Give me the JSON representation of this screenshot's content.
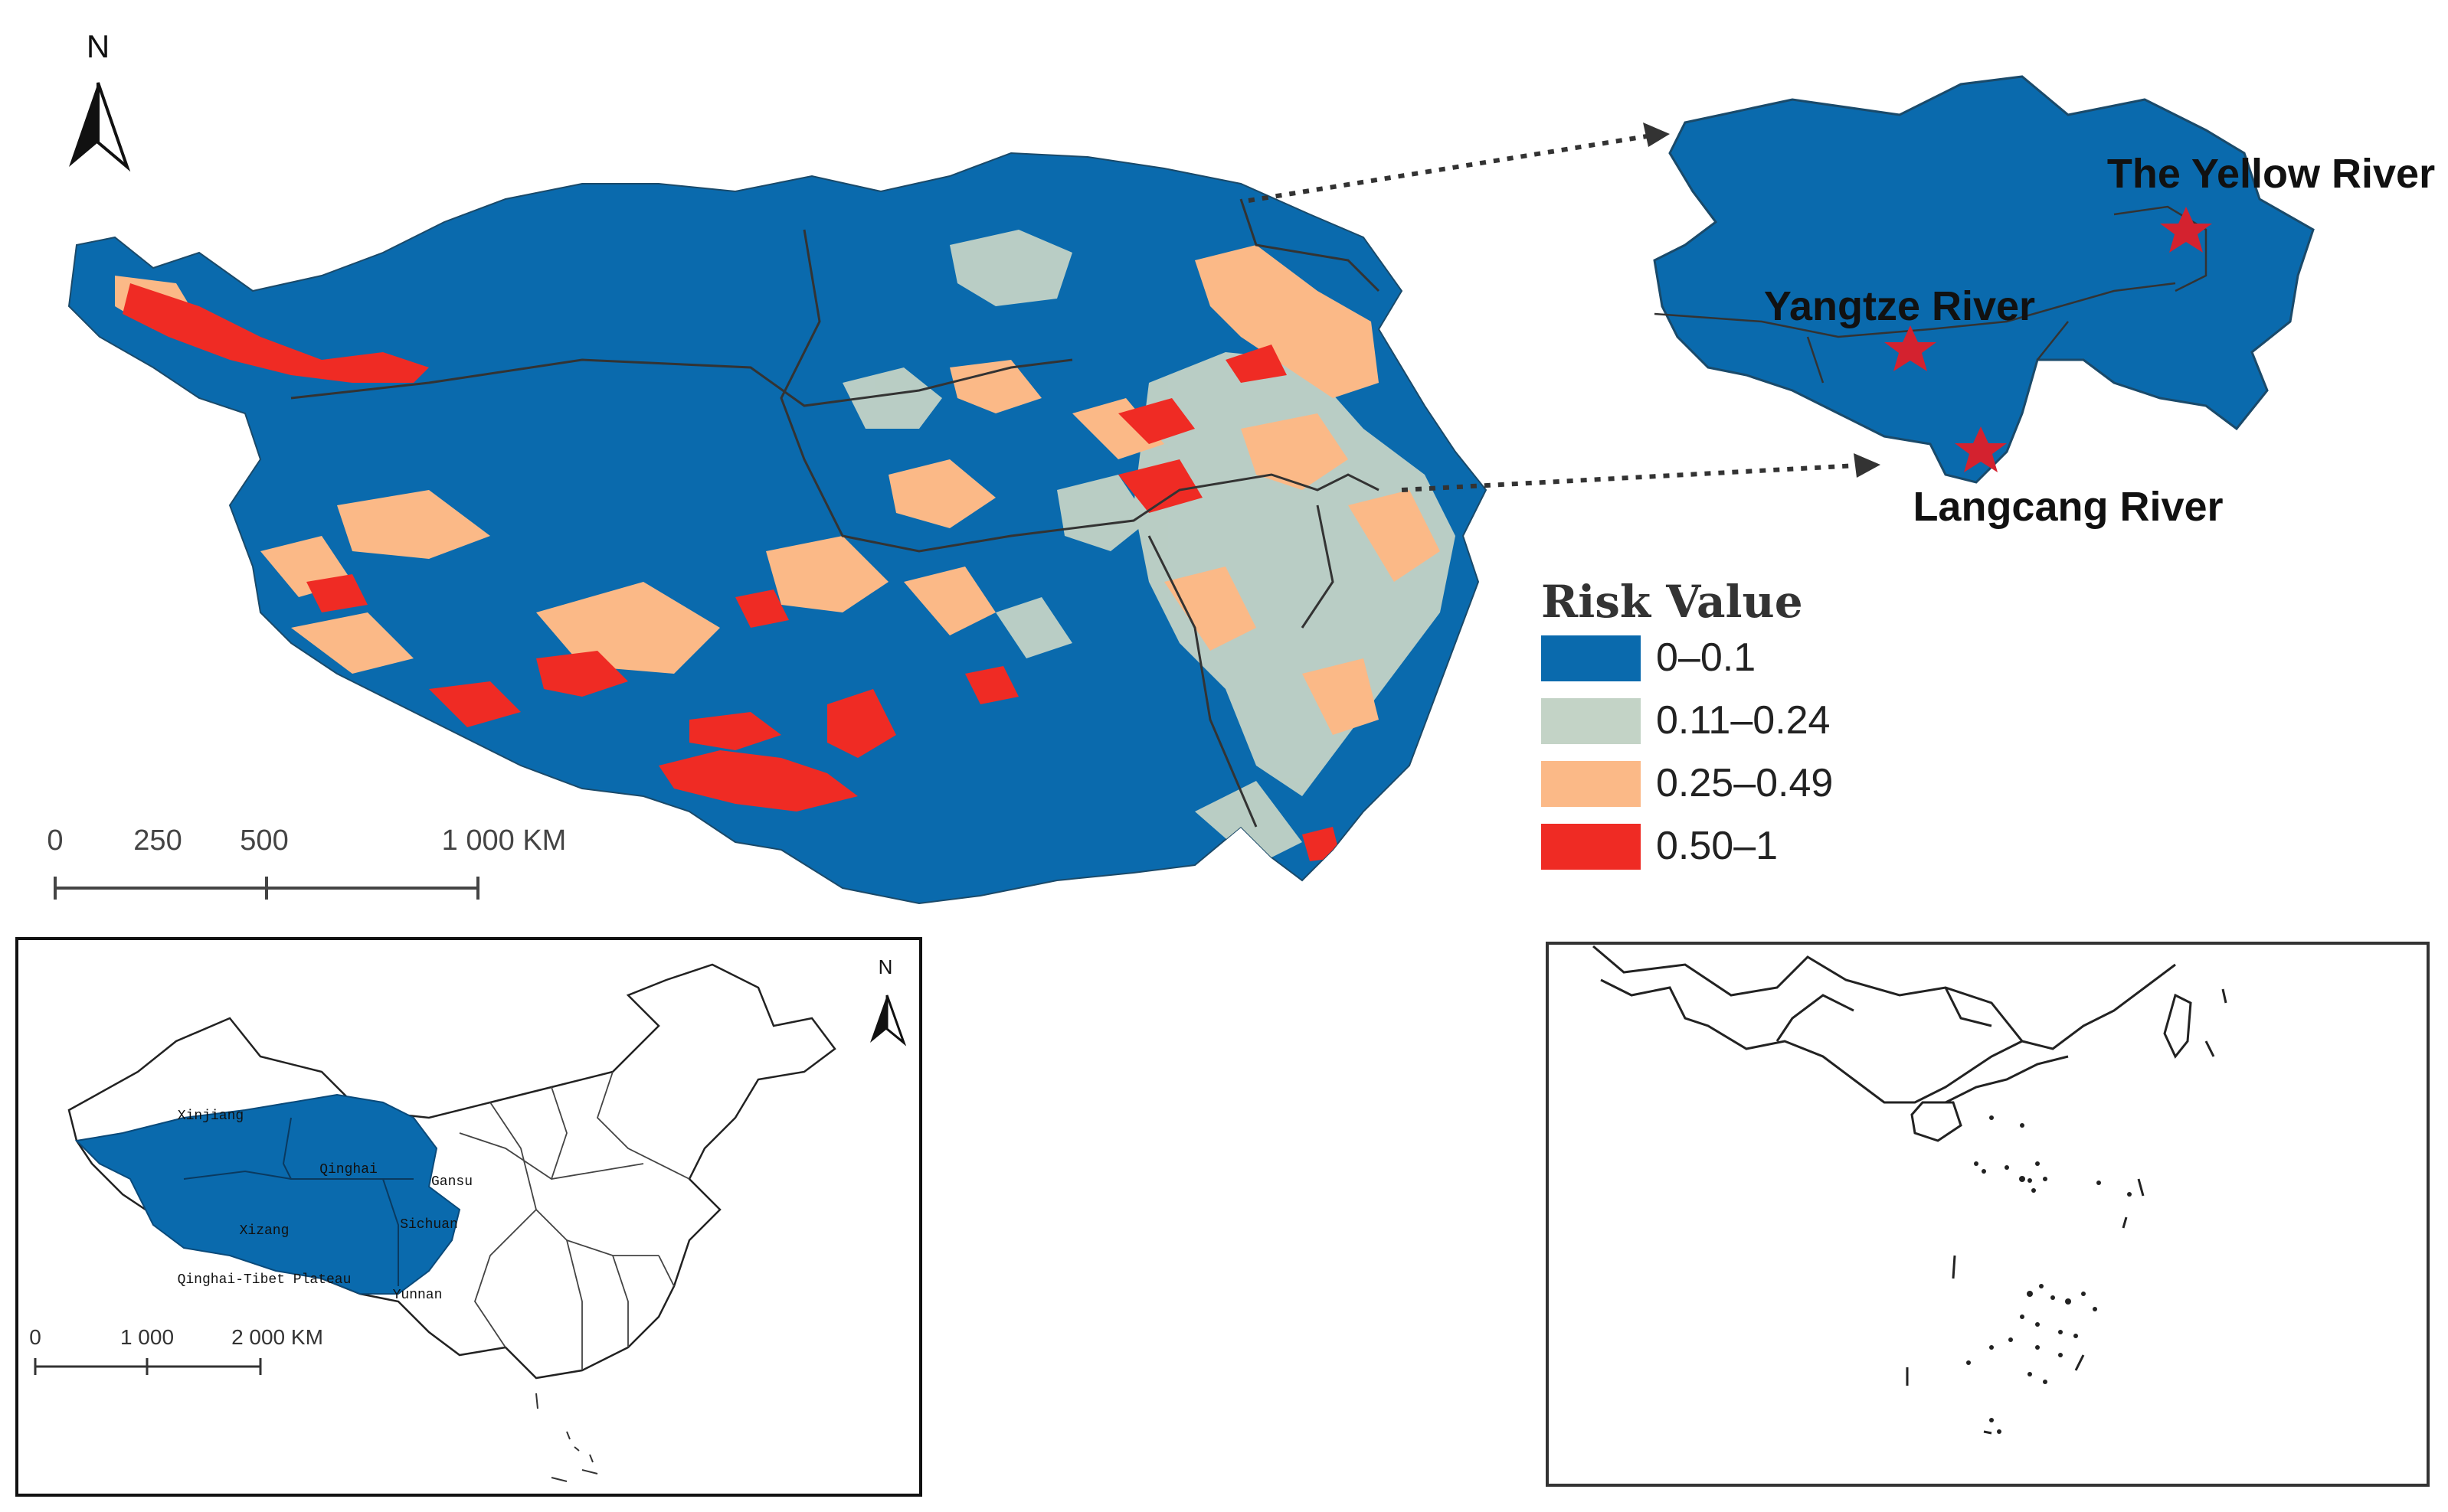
{
  "main_map": {
    "north_label": "N",
    "scale": {
      "ticks": [
        "0",
        "250",
        "500",
        "1 000 KM"
      ]
    }
  },
  "legend": {
    "title": "Risk Value",
    "items": [
      {
        "label": "0–0.1",
        "color": "#0a6aad"
      },
      {
        "label": "0.11–0.24",
        "color": "#c3d3c6"
      },
      {
        "label": "0.25–0.49",
        "color": "#fbb987"
      },
      {
        "label": "0.50–1",
        "color": "#ef2b24"
      }
    ]
  },
  "inset_rivers": {
    "labels": {
      "yellow": "The Yellow River",
      "yangtze": "Yangtze River",
      "langcang": "Langcang River"
    },
    "marker_color": "#d4222f"
  },
  "china_map": {
    "north_label": "N",
    "provinces": {
      "xinjiang": "Xinjiang",
      "qinghai": "Qinghai",
      "gansu": "Gansu",
      "xizang": "Xizang",
      "sichuan": "Sichuan",
      "yunnan": "Yunnan",
      "plateau": "Qinghai-Tibet Plateau"
    },
    "scale": {
      "ticks": [
        "0",
        "1 000",
        "2 000 KM"
      ]
    }
  }
}
